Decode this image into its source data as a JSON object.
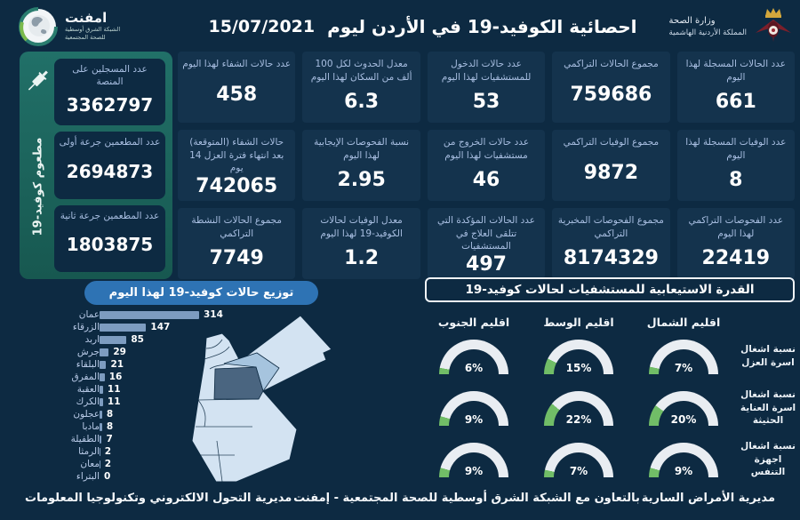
{
  "theme": {
    "background": "#0d2a42",
    "panel": "#14334d",
    "label_text": "#a9bfe2",
    "teal_a": "#217068",
    "teal_b": "#175850",
    "banner_blue": "#2e73b4",
    "bar_fill": "#7d9cc0",
    "gauge_green": "#71bd67",
    "gauge_track": "#e9edf2",
    "map_light": "#d3e3f2",
    "map_medium": "#a6c4de",
    "map_dark": "#4a6580"
  },
  "header": {
    "title": "احصائية الكوفيد-19 في الأردن ليوم",
    "date": "15/07/2021",
    "ministry_line1": "وزارة الصحة",
    "ministry_line2": "المملكة الأردنية الهاشمية",
    "logo_name": "امفنت",
    "logo_sub1": "الشبكة الشرق أوسطية",
    "logo_sub2": "للصحة المجتمعية"
  },
  "vaccination": {
    "vertical_label": "مطعوم كوفيد-19",
    "boxes": [
      {
        "label": "عدد المسجلين على المنصة",
        "value": "3362797"
      },
      {
        "label": "عدد المطعمين جرعة أولى",
        "value": "2694873"
      },
      {
        "label": "عدد المطعمين جرعة ثانية",
        "value": "1803875"
      }
    ]
  },
  "stats": [
    {
      "label": "عدد الحالات المسجلة لهذا اليوم",
      "value": "661"
    },
    {
      "label": "مجموع الحالات التراكمي",
      "value": "759686"
    },
    {
      "label": "عدد حالات الدخول للمستشفيات لهذا اليوم",
      "value": "53"
    },
    {
      "label": "معدل الحدوث لكل 100 ألف من السكان لهذا اليوم",
      "value": "6.3"
    },
    {
      "label": "عدد حالات الشفاء لهذا اليوم",
      "value": "458"
    },
    {
      "label": "عدد الوفيات المسجلة لهذا اليوم",
      "value": "8"
    },
    {
      "label": "مجموع الوفيات التراكمي",
      "value": "9872"
    },
    {
      "label": "عدد حالات الخروج من مستشفيات لهذا اليوم",
      "value": "46"
    },
    {
      "label": "نسبة الفحوصات الإيجابية لهذا اليوم",
      "value": "2.95"
    },
    {
      "label": "حالات الشفاء (المتوقعة) بعد انتهاء فترة العزل 14 يوم",
      "value": "742065"
    },
    {
      "label": "عدد الفحوصات التراكمي لهذا اليوم",
      "value": "22419"
    },
    {
      "label": "مجموع الفحوصات المخبرية التراكمي",
      "value": "8174329"
    },
    {
      "label": "عدد الحالات المؤكدة التي تتلقى العلاج في المستشفيات",
      "value": "497"
    },
    {
      "label": "معدل الوفيات لحالات الكوفيد-19 لهذا اليوم",
      "value": "1.2"
    },
    {
      "label": "مجموع الحالات النشطة التراكمي",
      "value": "7749"
    }
  ],
  "chart_data": [
    {
      "type": "bar",
      "orientation": "horizontal",
      "title": "توزيع حالات كوفيد-19 لهذا اليوم",
      "categories": [
        "عمان",
        "الزرقاء",
        "اربد",
        "جرش",
        "البلقاء",
        "المفرق",
        "العقبة",
        "الكرك",
        "عجلون",
        "مادبا",
        "الطفيلة",
        "الرمثا",
        "معان",
        "البتراء"
      ],
      "values": [
        314,
        147,
        85,
        29,
        21,
        16,
        11,
        11,
        8,
        8,
        7,
        2,
        2,
        0
      ],
      "xlim": [
        0,
        314
      ],
      "grid": false,
      "legend": false
    },
    {
      "type": "gauge-grid",
      "title": "القدرة الاستيعابية للمستشفيات لحالات كوفيد-19",
      "unit": "%",
      "columns": [
        "اقليم الشمال",
        "اقليم الوسط",
        "اقليم الجنوب"
      ],
      "rows": [
        {
          "label": "نسبة اشغال اسرة العزل",
          "values": [
            7,
            15,
            6
          ]
        },
        {
          "label": "نسبة اشغال اسرة العناية الحثيثة",
          "values": [
            20,
            22,
            9
          ]
        },
        {
          "label": "نسبة اشغال اجهزة التنفس",
          "values": [
            9,
            7,
            9
          ]
        }
      ],
      "range": [
        0,
        100
      ]
    }
  ],
  "footer": {
    "right": "مديرية الأمراض السارية",
    "center": "بالتعاون مع الشبكة الشرق أوسطية للصحة المجتمعية - إمفنت",
    "left": "مديرية التحول الالكتروني وتكنولوجيا المعلومات"
  }
}
